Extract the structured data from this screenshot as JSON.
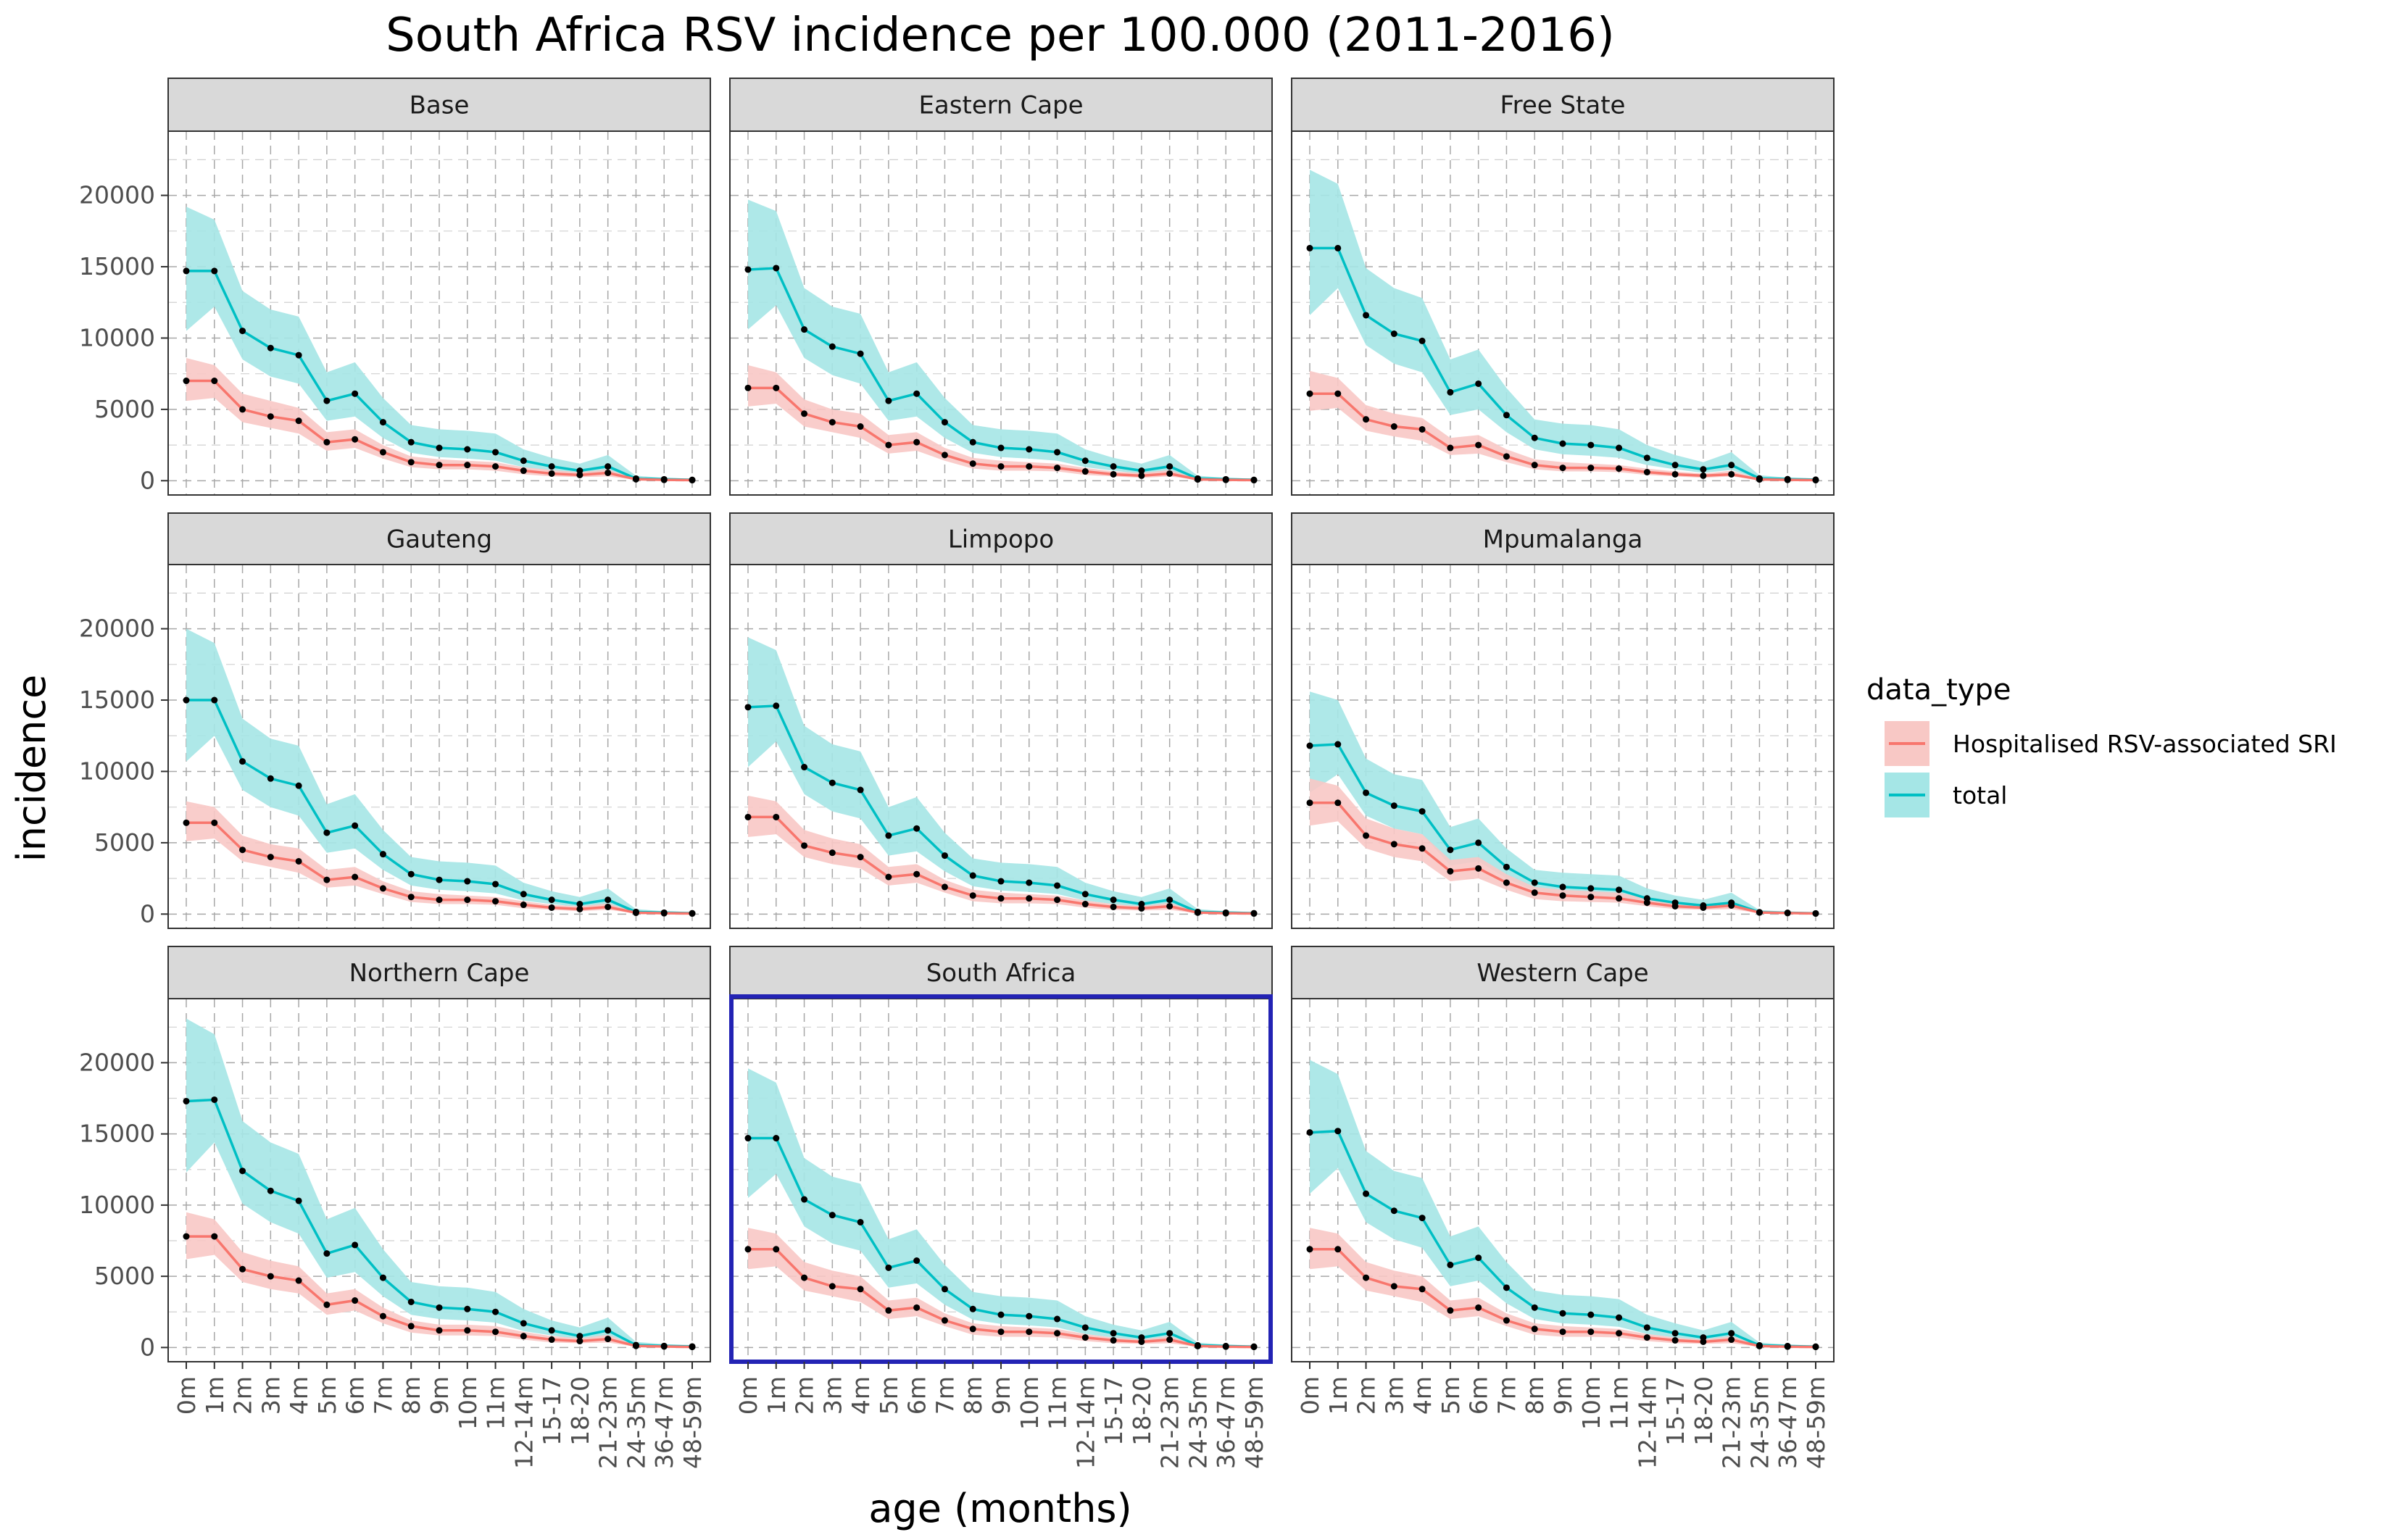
{
  "chart_data": {
    "type": "line",
    "title": "South Africa RSV incidence per 100.000 (2011-2016)",
    "xlabel": "age (months)",
    "ylabel": "incidence",
    "ylim": [
      -1000,
      24500
    ],
    "y_ticks": [
      "0",
      "5000",
      "10000",
      "15000",
      "20000"
    ],
    "categories": [
      "0m",
      "1m",
      "2m",
      "3m",
      "4m",
      "5m",
      "6m",
      "7m",
      "8m",
      "9m",
      "10m",
      "11m",
      "12-14m",
      "15-17",
      "18-20",
      "21-23m",
      "24-35m",
      "36-47m",
      "48-59m"
    ],
    "grid": "dashed",
    "facet_layout": "3x3",
    "highlighted_panel": "South Africa",
    "highlight_color": "#2323b4",
    "legend": {
      "title": "data_type",
      "position": "right",
      "entries": [
        {
          "label": "Hospitalised RSV-associated SRI",
          "color": "#f8766d",
          "fill": "#f8c8c5"
        },
        {
          "label": "total",
          "color": "#00bfc4",
          "fill": "#a5e6e6"
        }
      ]
    },
    "panels": [
      {
        "name": "Base",
        "hosp": [
          7000,
          7000,
          5000,
          4500,
          4200,
          2700,
          2900,
          2000,
          1300,
          1100,
          1100,
          1000,
          700,
          500,
          400,
          550,
          100,
          60,
          40
        ],
        "hosp_lo": [
          5600,
          5800,
          4100,
          3700,
          3300,
          2100,
          2300,
          1550,
          950,
          800,
          800,
          700,
          450,
          300,
          250,
          300,
          50,
          30,
          20
        ],
        "hosp_hi": [
          8600,
          8100,
          6100,
          5600,
          5100,
          3400,
          3600,
          2500,
          1700,
          1500,
          1400,
          1300,
          950,
          750,
          600,
          800,
          150,
          90,
          70
        ],
        "total": [
          14700,
          14700,
          10500,
          9300,
          8800,
          5600,
          6100,
          4100,
          2700,
          2300,
          2200,
          2000,
          1400,
          1000,
          700,
          1000,
          150,
          100,
          60
        ],
        "total_lo": [
          10500,
          12200,
          8500,
          7300,
          6800,
          4200,
          4500,
          3000,
          1950,
          1650,
          1550,
          1400,
          950,
          700,
          500,
          650,
          100,
          60,
          40
        ],
        "total_hi": [
          19200,
          18300,
          13300,
          12000,
          11500,
          7600,
          8300,
          5800,
          3900,
          3600,
          3500,
          3300,
          2200,
          1600,
          1200,
          1800,
          350,
          200,
          150
        ]
      },
      {
        "name": "Eastern Cape",
        "hosp": [
          6500,
          6500,
          4700,
          4100,
          3800,
          2500,
          2700,
          1800,
          1200,
          1000,
          1000,
          900,
          650,
          450,
          350,
          500,
          90,
          60,
          40
        ],
        "hosp_lo": [
          5200,
          5400,
          3800,
          3400,
          3000,
          1900,
          2100,
          1400,
          850,
          700,
          700,
          650,
          400,
          300,
          200,
          300,
          50,
          30,
          20
        ],
        "hosp_hi": [
          8100,
          7600,
          5700,
          5000,
          4700,
          3200,
          3400,
          2300,
          1600,
          1400,
          1300,
          1200,
          900,
          650,
          550,
          750,
          150,
          90,
          60
        ],
        "total": [
          14800,
          14900,
          10600,
          9400,
          8900,
          5600,
          6100,
          4100,
          2700,
          2300,
          2200,
          2000,
          1400,
          1000,
          700,
          1000,
          150,
          100,
          60
        ],
        "total_lo": [
          10600,
          12300,
          8600,
          7400,
          6800,
          4200,
          4500,
          3000,
          1950,
          1650,
          1550,
          1400,
          950,
          700,
          500,
          650,
          100,
          60,
          40
        ],
        "total_hi": [
          19700,
          18900,
          13500,
          12200,
          11700,
          7600,
          8300,
          5800,
          3900,
          3600,
          3500,
          3300,
          2200,
          1600,
          1200,
          1800,
          350,
          200,
          150
        ]
      },
      {
        "name": "Free State",
        "hosp": [
          6100,
          6100,
          4300,
          3800,
          3600,
          2300,
          2500,
          1700,
          1100,
          900,
          900,
          850,
          600,
          450,
          350,
          450,
          90,
          60,
          40
        ],
        "hosp_lo": [
          4900,
          5100,
          3500,
          3100,
          2800,
          1800,
          1900,
          1300,
          800,
          650,
          650,
          600,
          400,
          300,
          200,
          300,
          50,
          30,
          20
        ],
        "hosp_hi": [
          7700,
          7200,
          5300,
          4700,
          4400,
          3000,
          3200,
          2200,
          1500,
          1300,
          1200,
          1100,
          850,
          650,
          500,
          700,
          150,
          90,
          60
        ],
        "total": [
          16300,
          16300,
          11600,
          10300,
          9800,
          6200,
          6800,
          4600,
          3000,
          2600,
          2500,
          2300,
          1600,
          1100,
          800,
          1100,
          160,
          110,
          70
        ],
        "total_lo": [
          11600,
          13500,
          9500,
          8200,
          7600,
          4600,
          5000,
          3400,
          2200,
          1850,
          1750,
          1600,
          1100,
          800,
          550,
          750,
          110,
          70,
          40
        ],
        "total_hi": [
          21800,
          20800,
          14900,
          13500,
          12800,
          8500,
          9200,
          6500,
          4300,
          4000,
          3900,
          3600,
          2500,
          1800,
          1300,
          2000,
          380,
          220,
          160
        ]
      },
      {
        "name": "Gauteng",
        "hosp": [
          6400,
          6400,
          4500,
          4000,
          3700,
          2400,
          2600,
          1800,
          1200,
          1000,
          1000,
          900,
          650,
          450,
          350,
          500,
          90,
          60,
          40
        ],
        "hosp_lo": [
          5100,
          5300,
          3700,
          3300,
          2900,
          1850,
          2000,
          1400,
          850,
          700,
          700,
          650,
          400,
          300,
          200,
          300,
          50,
          30,
          20
        ],
        "hosp_hi": [
          7900,
          7500,
          5500,
          4900,
          4600,
          3100,
          3300,
          2300,
          1600,
          1400,
          1300,
          1200,
          900,
          650,
          550,
          750,
          150,
          90,
          60
        ],
        "total": [
          15000,
          15000,
          10700,
          9500,
          9000,
          5700,
          6200,
          4200,
          2800,
          2400,
          2300,
          2100,
          1400,
          1000,
          700,
          1000,
          150,
          100,
          60
        ],
        "total_lo": [
          10700,
          12500,
          8700,
          7500,
          6900,
          4300,
          4600,
          3100,
          2000,
          1700,
          1600,
          1450,
          950,
          700,
          500,
          650,
          100,
          60,
          40
        ],
        "total_hi": [
          20000,
          19000,
          13700,
          12300,
          11800,
          7700,
          8400,
          5900,
          4000,
          3700,
          3600,
          3400,
          2200,
          1600,
          1200,
          1800,
          350,
          200,
          150
        ]
      },
      {
        "name": "Limpopo",
        "hosp": [
          6800,
          6800,
          4800,
          4300,
          4000,
          2600,
          2800,
          1900,
          1300,
          1100,
          1100,
          1000,
          700,
          500,
          400,
          550,
          100,
          60,
          40
        ],
        "hosp_lo": [
          5400,
          5600,
          4000,
          3500,
          3200,
          2000,
          2200,
          1500,
          900,
          750,
          750,
          700,
          450,
          300,
          250,
          300,
          50,
          30,
          20
        ],
        "hosp_hi": [
          8300,
          7900,
          5900,
          5300,
          4900,
          3300,
          3500,
          2400,
          1700,
          1500,
          1400,
          1300,
          950,
          700,
          550,
          800,
          150,
          90,
          60
        ],
        "total": [
          14500,
          14600,
          10300,
          9200,
          8700,
          5500,
          6000,
          4100,
          2700,
          2300,
          2200,
          2000,
          1400,
          1000,
          700,
          1000,
          150,
          100,
          60
        ],
        "total_lo": [
          10300,
          12100,
          8400,
          7200,
          6700,
          4100,
          4400,
          3000,
          1950,
          1650,
          1550,
          1400,
          950,
          700,
          500,
          650,
          100,
          60,
          40
        ],
        "total_hi": [
          19400,
          18500,
          13200,
          11900,
          11400,
          7500,
          8200,
          5700,
          3900,
          3600,
          3500,
          3300,
          2200,
          1600,
          1200,
          1800,
          350,
          200,
          150
        ]
      },
      {
        "name": "Mpumalanga",
        "hosp": [
          7800,
          7800,
          5500,
          4900,
          4600,
          3000,
          3200,
          2200,
          1500,
          1300,
          1200,
          1100,
          800,
          550,
          450,
          600,
          110,
          70,
          40
        ],
        "hosp_lo": [
          6200,
          6500,
          4600,
          4000,
          3700,
          2300,
          2500,
          1700,
          1050,
          900,
          850,
          800,
          550,
          350,
          300,
          350,
          60,
          40,
          20
        ],
        "hosp_hi": [
          9500,
          9000,
          6700,
          6000,
          5600,
          3800,
          4000,
          2800,
          1900,
          1700,
          1600,
          1500,
          1100,
          800,
          650,
          900,
          170,
          100,
          70
        ],
        "total": [
          11800,
          11900,
          8500,
          7600,
          7200,
          4500,
          5000,
          3300,
          2200,
          1900,
          1800,
          1700,
          1100,
          800,
          600,
          800,
          130,
          90,
          50
        ],
        "total_lo": [
          8500,
          9800,
          6900,
          6000,
          5600,
          3400,
          3700,
          2500,
          1650,
          1400,
          1300,
          1200,
          800,
          550,
          400,
          550,
          80,
          50,
          30
        ],
        "total_hi": [
          15600,
          15000,
          10900,
          9800,
          9400,
          6100,
          6700,
          4600,
          3100,
          2900,
          2800,
          2700,
          1800,
          1300,
          1000,
          1500,
          280,
          170,
          120
        ]
      },
      {
        "name": "Northern Cape",
        "hosp": [
          7800,
          7800,
          5500,
          5000,
          4700,
          3000,
          3300,
          2200,
          1500,
          1200,
          1200,
          1100,
          800,
          550,
          450,
          600,
          110,
          70,
          40
        ],
        "hosp_lo": [
          6200,
          6500,
          4600,
          4100,
          3800,
          2300,
          2600,
          1700,
          1050,
          850,
          850,
          800,
          550,
          350,
          300,
          350,
          60,
          40,
          20
        ],
        "hosp_hi": [
          9500,
          9000,
          6700,
          6100,
          5700,
          3800,
          4100,
          2800,
          1900,
          1600,
          1600,
          1500,
          1100,
          800,
          650,
          900,
          170,
          100,
          70
        ],
        "total": [
          17300,
          17400,
          12400,
          11000,
          10300,
          6600,
          7200,
          4900,
          3200,
          2800,
          2700,
          2500,
          1700,
          1200,
          800,
          1200,
          170,
          110,
          70
        ],
        "total_lo": [
          12300,
          14400,
          10100,
          8800,
          8000,
          4900,
          5300,
          3600,
          2300,
          2000,
          1900,
          1750,
          1150,
          850,
          550,
          800,
          110,
          70,
          40
        ],
        "total_hi": [
          23100,
          22000,
          15900,
          14400,
          13600,
          9000,
          9800,
          6900,
          4600,
          4300,
          4200,
          3900,
          2700,
          1900,
          1400,
          2100,
          400,
          230,
          170
        ]
      },
      {
        "name": "South Africa",
        "hosp": [
          6900,
          6900,
          4900,
          4300,
          4100,
          2600,
          2800,
          1900,
          1300,
          1100,
          1100,
          1000,
          700,
          500,
          400,
          550,
          100,
          60,
          40
        ],
        "hosp_lo": [
          5500,
          5700,
          4000,
          3600,
          3200,
          2000,
          2200,
          1500,
          900,
          750,
          750,
          700,
          450,
          300,
          250,
          300,
          50,
          30,
          20
        ],
        "hosp_hi": [
          8400,
          8000,
          6000,
          5400,
          5000,
          3300,
          3500,
          2400,
          1700,
          1500,
          1400,
          1300,
          950,
          700,
          550,
          800,
          150,
          90,
          60
        ],
        "total": [
          14700,
          14700,
          10400,
          9300,
          8800,
          5600,
          6100,
          4100,
          2700,
          2300,
          2200,
          2000,
          1400,
          1000,
          700,
          1000,
          150,
          100,
          60
        ],
        "total_lo": [
          10500,
          12200,
          8500,
          7300,
          6800,
          4200,
          4500,
          3000,
          1950,
          1650,
          1550,
          1400,
          950,
          700,
          500,
          650,
          100,
          60,
          40
        ],
        "total_hi": [
          19600,
          18600,
          13300,
          12000,
          11500,
          7600,
          8300,
          5800,
          3900,
          3600,
          3500,
          3300,
          2200,
          1600,
          1200,
          1800,
          350,
          200,
          150
        ]
      },
      {
        "name": "Western Cape",
        "hosp": [
          6900,
          6900,
          4900,
          4300,
          4100,
          2600,
          2800,
          1900,
          1300,
          1100,
          1100,
          1000,
          700,
          500,
          400,
          550,
          100,
          60,
          40
        ],
        "hosp_lo": [
          5500,
          5700,
          4000,
          3600,
          3200,
          2000,
          2200,
          1500,
          900,
          750,
          750,
          700,
          450,
          300,
          250,
          300,
          50,
          30,
          20
        ],
        "hosp_hi": [
          8400,
          8000,
          6000,
          5400,
          5000,
          3300,
          3500,
          2400,
          1700,
          1500,
          1400,
          1300,
          950,
          700,
          550,
          800,
          150,
          90,
          60
        ],
        "total": [
          15100,
          15200,
          10800,
          9600,
          9100,
          5800,
          6300,
          4200,
          2800,
          2400,
          2300,
          2100,
          1400,
          1000,
          700,
          1000,
          150,
          100,
          60
        ],
        "total_lo": [
          10800,
          12600,
          8800,
          7600,
          7000,
          4300,
          4700,
          3100,
          2000,
          1700,
          1600,
          1450,
          950,
          700,
          500,
          650,
          100,
          60,
          40
        ],
        "total_hi": [
          20200,
          19200,
          13800,
          12400,
          11900,
          7800,
          8500,
          6000,
          4000,
          3700,
          3600,
          3400,
          2300,
          1700,
          1200,
          1800,
          350,
          200,
          150
        ]
      }
    ]
  }
}
